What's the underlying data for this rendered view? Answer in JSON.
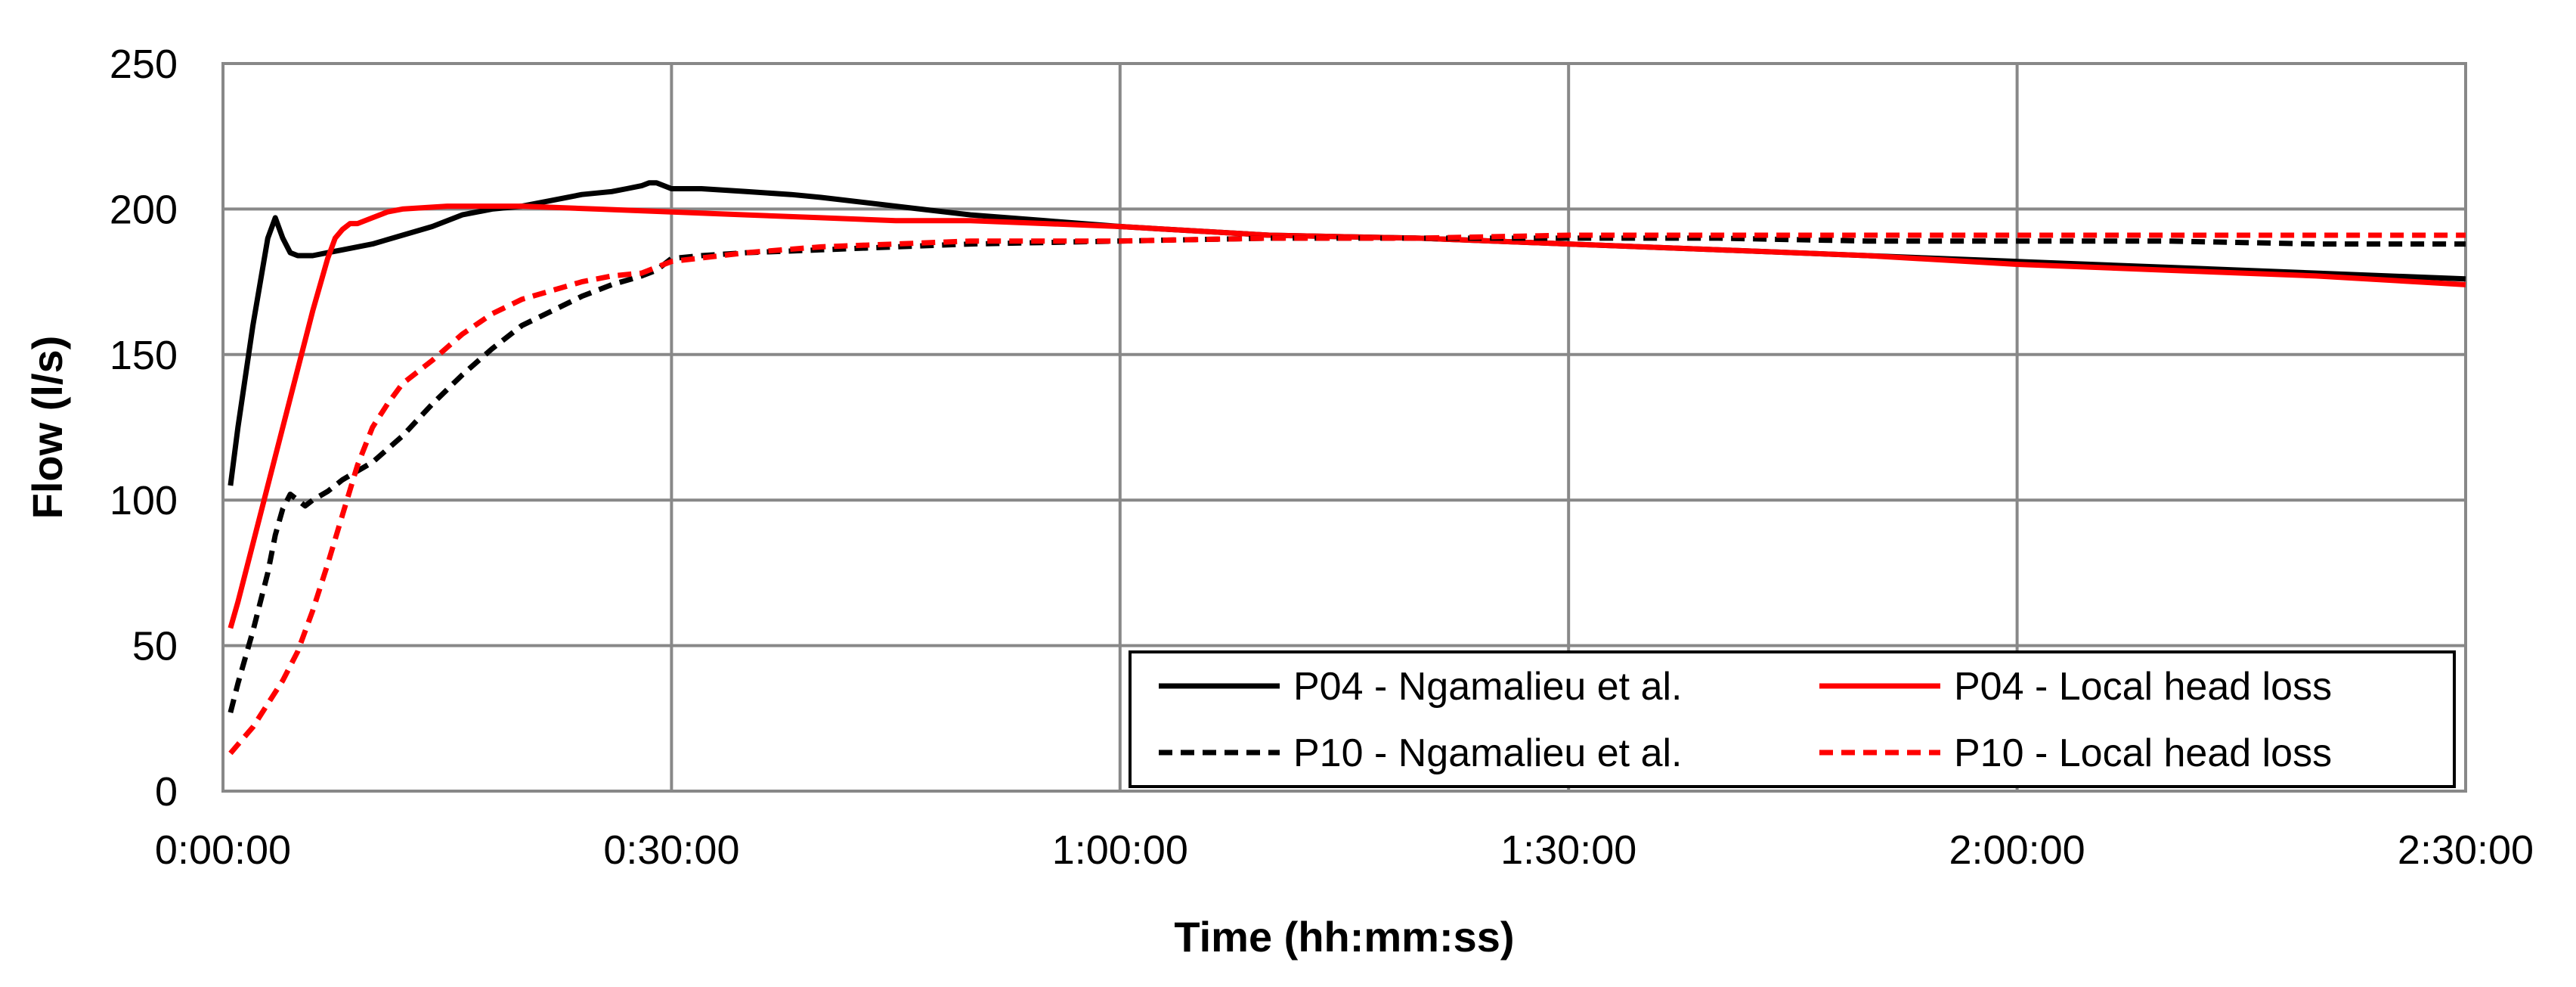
{
  "chart_data": {
    "type": "line",
    "title": "",
    "xlabel": "Time (hh:mm:ss)",
    "ylabel": "Flow (l/s)",
    "xlim": [
      0,
      150
    ],
    "ylim": [
      0,
      250
    ],
    "x_unit": "minutes",
    "x_ticks": [
      0,
      30,
      60,
      90,
      120,
      150
    ],
    "x_tick_labels": [
      "0:00:00",
      "0:30:00",
      "1:00:00",
      "1:30:00",
      "2:00:00",
      "2:30:00"
    ],
    "y_ticks": [
      0,
      50,
      100,
      150,
      200,
      250
    ],
    "y_tick_labels": [
      "0",
      "50",
      "100",
      "150",
      "200",
      "250"
    ],
    "grid": true,
    "legend_position": "bottom-right",
    "series": [
      {
        "name": "P04 - Ngamalieu et al.",
        "color": "#000000",
        "dash": "solid",
        "x": [
          0.5,
          1,
          2,
          3,
          3.5,
          4,
          4.5,
          5,
          6,
          7,
          8,
          10,
          12,
          14,
          16,
          18,
          20,
          22,
          24,
          26,
          27,
          28,
          28.5,
          29,
          30,
          32,
          35,
          38,
          40,
          45,
          50,
          55,
          60,
          70,
          80,
          90,
          100,
          110,
          120,
          130,
          140,
          150
        ],
        "y": [
          105,
          125,
          160,
          190,
          197,
          190,
          185,
          184,
          184,
          185,
          186,
          188,
          191,
          194,
          198,
          200,
          201,
          203,
          205,
          206,
          207,
          208,
          209,
          209,
          207,
          207,
          206,
          205,
          204,
          201,
          198,
          196,
          194,
          191,
          190,
          188,
          186,
          184,
          182,
          180,
          178,
          176
        ]
      },
      {
        "name": "P04 - Local head loss",
        "color": "#ff0000",
        "dash": "solid",
        "x": [
          0.5,
          1,
          2,
          3,
          4,
          5,
          6,
          7,
          7.5,
          8,
          8.5,
          9,
          10,
          11,
          12,
          15,
          20,
          25,
          30,
          35,
          40,
          45,
          50,
          55,
          60,
          70,
          80,
          90,
          100,
          110,
          120,
          130,
          140,
          150
        ],
        "y": [
          56,
          65,
          85,
          105,
          125,
          145,
          165,
          183,
          190,
          193,
          195,
          195,
          197,
          199,
          200,
          201,
          201,
          200,
          199,
          198,
          197,
          196,
          196,
          195,
          194,
          191,
          190,
          188,
          186,
          184,
          181,
          179,
          177,
          174
        ]
      },
      {
        "name": "P10 - Ngamalieu et al.",
        "color": "#000000",
        "dash": "dashed",
        "x": [
          0.5,
          1,
          2,
          3,
          3.5,
          4,
          4.5,
          5,
          5.5,
          6,
          7,
          8,
          9,
          10,
          12,
          14,
          16,
          18,
          20,
          22,
          24,
          26,
          28,
          29,
          30,
          32,
          35,
          40,
          45,
          50,
          60,
          70,
          80,
          90,
          100,
          110,
          120,
          130,
          140,
          150
        ],
        "y": [
          27,
          37,
          55,
          75,
          88,
          97,
          102,
          100,
          98,
          100,
          103,
          107,
          110,
          113,
          122,
          133,
          143,
          152,
          160,
          165,
          170,
          174,
          177,
          179,
          183,
          184,
          185,
          186,
          187,
          188,
          189,
          190,
          190,
          190,
          190,
          189,
          189,
          189,
          188,
          188
        ]
      },
      {
        "name": "P10 - Local head loss",
        "color": "#ff0000",
        "dash": "dashed",
        "x": [
          0.5,
          1,
          2,
          3,
          4,
          5,
          6,
          7,
          8,
          9,
          10,
          11,
          12,
          14,
          16,
          18,
          20,
          22,
          24,
          26,
          28,
          30,
          35,
          40,
          45,
          50,
          60,
          70,
          80,
          90,
          100,
          110,
          120,
          130,
          140,
          150
        ],
        "y": [
          13,
          16,
          22,
          30,
          38,
          48,
          62,
          78,
          95,
          112,
          125,
          133,
          140,
          148,
          157,
          164,
          169,
          172,
          175,
          177,
          178,
          182,
          185,
          187,
          188,
          189,
          189,
          190,
          190,
          191,
          191,
          191,
          191,
          191,
          191,
          191
        ]
      }
    ]
  }
}
